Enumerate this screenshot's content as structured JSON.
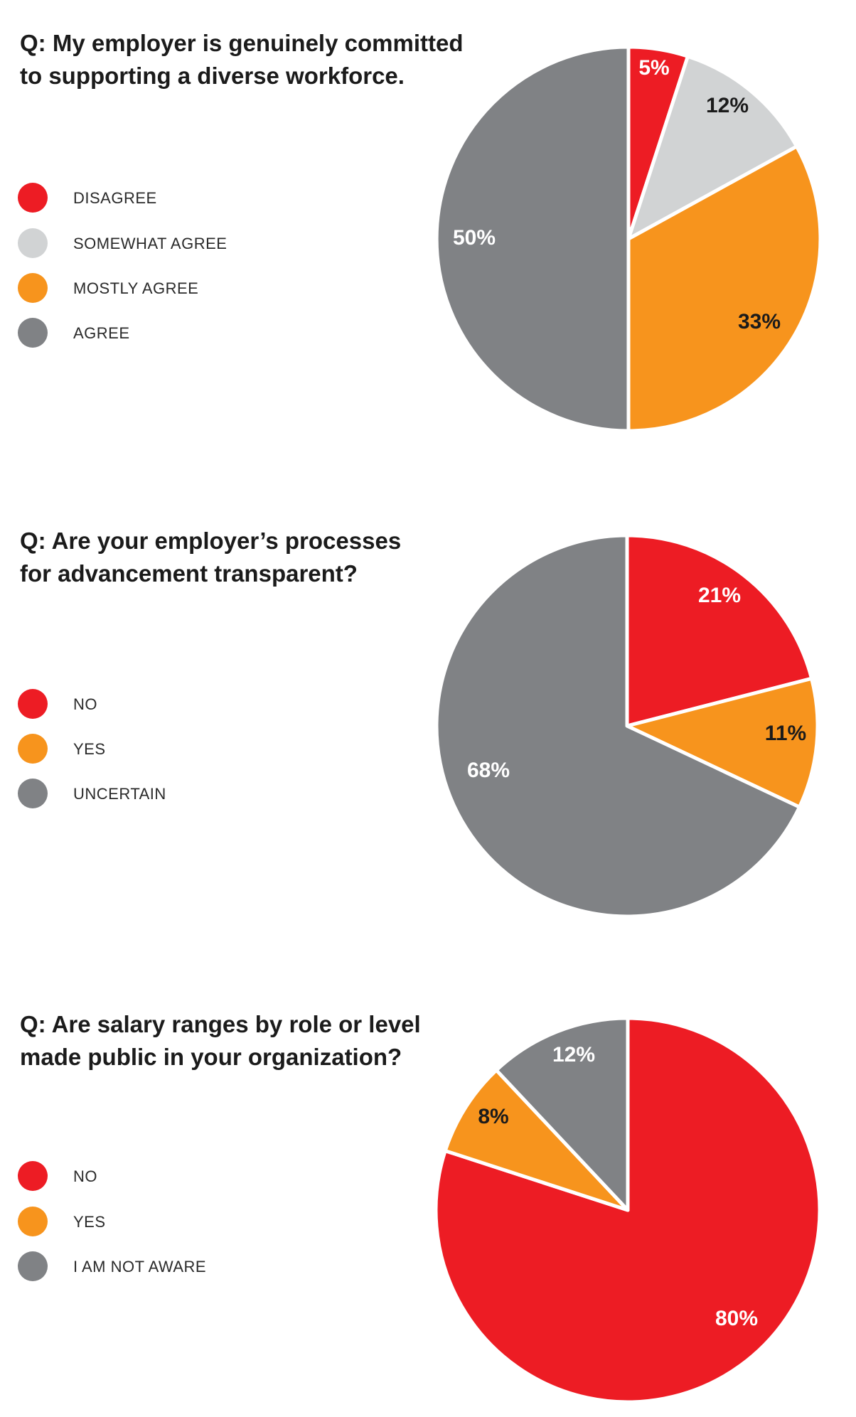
{
  "chart_data": [
    {
      "type": "pie",
      "title_lines": [
        "Q: My employer is genuinely committed",
        "to supporting a diverse workforce."
      ],
      "legend": [
        "DISAGREE",
        "SOMEWHAT AGREE",
        "MOSTLY AGREE",
        "AGREE"
      ],
      "legend_placement": "left",
      "slices": [
        {
          "label": "DISAGREE",
          "value": 5,
          "display": "5%",
          "color": "#ED1C24",
          "text_color": "#ffffff"
        },
        {
          "label": "SOMEWHAT AGREE",
          "value": 12,
          "display": "12%",
          "color": "#D1D3D4",
          "text_color": "#1b1b1b"
        },
        {
          "label": "MOSTLY AGREE",
          "value": 33,
          "display": "33%",
          "color": "#F7941D",
          "text_color": "#1b1b1b"
        },
        {
          "label": "AGREE",
          "value": 50,
          "display": "50%",
          "color": "#808285",
          "text_color": "#ffffff"
        }
      ]
    },
    {
      "type": "pie",
      "title_lines": [
        "Q: Are your employer’s processes",
        "for advancement transparent?"
      ],
      "legend": [
        "NO",
        "YES",
        "UNCERTAIN"
      ],
      "legend_placement": "left",
      "slices": [
        {
          "label": "NO",
          "value": 21,
          "display": "21%",
          "color": "#ED1C24",
          "text_color": "#ffffff"
        },
        {
          "label": "YES",
          "value": 11,
          "display": "11%",
          "color": "#F7941D",
          "text_color": "#1b1b1b"
        },
        {
          "label": "UNCERTAIN",
          "value": 68,
          "display": "68%",
          "color": "#808285",
          "text_color": "#ffffff"
        }
      ]
    },
    {
      "type": "pie",
      "title_lines": [
        "Q: Are salary ranges by role or level",
        "made public in your organization?"
      ],
      "legend": [
        "NO",
        "YES",
        "I AM NOT AWARE"
      ],
      "legend_placement": "left",
      "slices": [
        {
          "label": "NO",
          "value": 80,
          "display": "80%",
          "color": "#ED1C24",
          "text_color": "#ffffff"
        },
        {
          "label": "YES",
          "value": 8,
          "display": "8%",
          "color": "#F7941D",
          "text_color": "#1b1b1b"
        },
        {
          "label": "I AM NOT AWARE",
          "value": 12,
          "display": "12%",
          "color": "#808285",
          "text_color": "#ffffff"
        }
      ]
    }
  ]
}
